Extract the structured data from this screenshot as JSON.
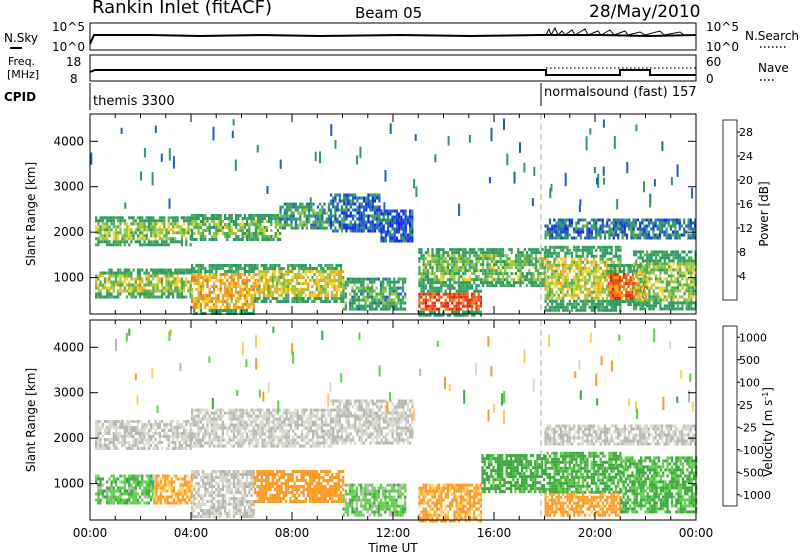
{
  "header": {
    "title": "Rankin Inlet (fitACF)",
    "beam": "Beam 05",
    "date": "28/May/2010"
  },
  "top_panels": {
    "sky_label": "N.Sky",
    "sky_axis_labels": [
      "10^5",
      "10^0"
    ],
    "search_label": "N.Search",
    "freq_label_1": "Freq.",
    "freq_label_2": "[MHz]",
    "freq_ticks": [
      "18",
      "8"
    ],
    "nave_label": "Nave",
    "nave_ticks": [
      "60",
      "0"
    ],
    "cpid_label": "CPID",
    "cpid_1": "themis 3300",
    "cpid_2": "normalsound (fast) 157"
  },
  "x_axis": {
    "ticks": [
      "00:00",
      "04:00",
      "08:00",
      "12:00",
      "16:00",
      "20:00",
      "00:00"
    ],
    "label": "Time UT"
  },
  "colors": {
    "power": [
      "#1a24ff",
      "#1f5fc7",
      "#2e9a63",
      "#4cb050",
      "#95c63c",
      "#f4d12a",
      "#f5a51e",
      "#f27a18",
      "#ef4d18",
      "#e82010"
    ],
    "velocity": [
      "#ff1111",
      "#ff5a1a",
      "#ff9a22",
      "#ffcf5c",
      "#d8d8cc",
      "#b8b8b0",
      "#5fd04a",
      "#3aa83a",
      "#2e8a6e",
      "#2b6fb8",
      "#2a3fb8"
    ]
  },
  "chart_data": [
    {
      "type": "heatmap",
      "panel": "power",
      "ylabel": "Slant Range [km]",
      "yticks": [
        "1000",
        "2000",
        "3000",
        "4000"
      ],
      "ylim": [
        200,
        4600
      ],
      "xlim_hours": [
        0,
        24
      ],
      "colorbar_label": "Power [dB]",
      "colorbar_ticks": [
        "4",
        "8",
        "12",
        "16",
        "20",
        "24",
        "28"
      ],
      "colorbar_range": [
        0,
        30
      ],
      "regions": [
        {
          "t0": 0.2,
          "t1": 4.0,
          "r0": 1750,
          "r1": 2350,
          "v": 13
        },
        {
          "t0": 4.0,
          "t1": 7.5,
          "r0": 1850,
          "r1": 2400,
          "v": 11
        },
        {
          "t0": 7.5,
          "t1": 9.5,
          "r0": 2100,
          "r1": 2650,
          "v": 9
        },
        {
          "t0": 9.5,
          "t1": 11.5,
          "r0": 2050,
          "r1": 2850,
          "v": 5
        },
        {
          "t0": 11.5,
          "t1": 12.8,
          "r0": 1800,
          "r1": 2500,
          "v": 4
        },
        {
          "t0": 0.2,
          "t1": 4.0,
          "r0": 600,
          "r1": 1200,
          "v": 14
        },
        {
          "t0": 4.0,
          "t1": 6.5,
          "r0": 200,
          "r1": 1300,
          "v": 19
        },
        {
          "t0": 6.5,
          "t1": 10.0,
          "r0": 500,
          "r1": 1300,
          "v": 16
        },
        {
          "t0": 10.0,
          "t1": 12.5,
          "r0": 300,
          "r1": 1000,
          "v": 10
        },
        {
          "t0": 13.0,
          "t1": 15.5,
          "r0": 200,
          "r1": 800,
          "v": 26
        },
        {
          "t0": 13.0,
          "t1": 18.0,
          "r0": 800,
          "r1": 1650,
          "v": 11
        },
        {
          "t0": 18.0,
          "t1": 21.0,
          "r0": 300,
          "r1": 1700,
          "v": 15
        },
        {
          "t0": 20.5,
          "t1": 22.0,
          "r0": 400,
          "r1": 1300,
          "v": 24
        },
        {
          "t0": 21.5,
          "t1": 24.0,
          "r0": 300,
          "r1": 1600,
          "v": 13
        },
        {
          "t0": 18.0,
          "t1": 24.0,
          "r0": 1850,
          "r1": 2300,
          "v": 6
        }
      ]
    },
    {
      "type": "heatmap",
      "panel": "velocity",
      "ylabel": "Slant Range [km]",
      "yticks": [
        "1000",
        "2000",
        "3000",
        "4000"
      ],
      "ylim": [
        200,
        4600
      ],
      "xlim_hours": [
        0,
        24
      ],
      "colorbar_label": "Velocity [m s^-1]",
      "colorbar_ticks": [
        "1000",
        "500",
        "100",
        "25",
        "-25",
        "-100",
        "-500",
        "-1000"
      ],
      "regions": [
        {
          "t0": 0.2,
          "t1": 4.0,
          "r0": 1750,
          "r1": 2400,
          "v": 0
        },
        {
          "t0": 4.0,
          "t1": 9.5,
          "r0": 1850,
          "r1": 2650,
          "v": 0
        },
        {
          "t0": 9.5,
          "t1": 12.8,
          "r0": 1900,
          "r1": 2850,
          "v": 0
        },
        {
          "t0": 0.2,
          "t1": 2.5,
          "r0": 600,
          "r1": 1200,
          "v": 80
        },
        {
          "t0": 2.5,
          "t1": 4.0,
          "r0": 600,
          "r1": 1200,
          "v": -120
        },
        {
          "t0": 4.0,
          "t1": 6.5,
          "r0": 300,
          "r1": 1300,
          "v": 0
        },
        {
          "t0": 6.5,
          "t1": 10.0,
          "r0": 600,
          "r1": 1300,
          "v": -300
        },
        {
          "t0": 10.0,
          "t1": 12.5,
          "r0": 300,
          "r1": 1000,
          "v": 60
        },
        {
          "t0": 13.0,
          "t1": 15.5,
          "r0": 200,
          "r1": 1000,
          "v": -150
        },
        {
          "t0": 15.5,
          "t1": 18.0,
          "r0": 800,
          "r1": 1650,
          "v": 200
        },
        {
          "t0": 18.0,
          "t1": 21.0,
          "r0": 800,
          "r1": 1700,
          "v": 150
        },
        {
          "t0": 18.0,
          "t1": 21.0,
          "r0": 300,
          "r1": 800,
          "v": -200
        },
        {
          "t0": 21.0,
          "t1": 24.0,
          "r0": 400,
          "r1": 1600,
          "v": 120
        },
        {
          "t0": 18.0,
          "t1": 24.0,
          "r0": 1850,
          "r1": 2300,
          "v": 0
        }
      ]
    }
  ]
}
